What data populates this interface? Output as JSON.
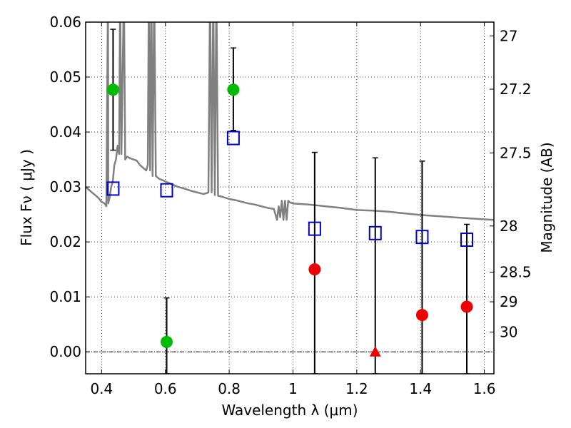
{
  "chart_data": {
    "type": "scatter",
    "title": "",
    "xlabel": "Wavelength  λ (μm)",
    "ylabel_left": "Flux  Fν  ( μJy )",
    "ylabel_right": "Magnitude (AB)",
    "xlim": [
      0.35,
      1.63
    ],
    "ylim": [
      -0.004,
      0.06
    ],
    "grid": true,
    "grid_style": "dotted",
    "x_ticks": [
      0.4,
      0.6,
      0.8,
      1.0,
      1.2,
      1.4,
      1.6
    ],
    "x_tick_labels": [
      "0.4",
      "0.6",
      "0.8",
      "1",
      "1.2",
      "1.4",
      "1.6"
    ],
    "y_ticks": [
      0.0,
      0.01,
      0.02,
      0.03,
      0.04,
      0.05,
      0.06
    ],
    "y_tick_labels": [
      "0.00",
      "0.01",
      "0.02",
      "0.03",
      "0.04",
      "0.05",
      "0.06"
    ],
    "right_axis_ticks": [
      {
        "label": "27",
        "flux": 0.0575
      },
      {
        "label": "27.2",
        "flux": 0.0478
      },
      {
        "label": "27.5",
        "flux": 0.0362
      },
      {
        "label": "28",
        "flux": 0.0229
      },
      {
        "label": "28.5",
        "flux": 0.0145
      },
      {
        "label": "29",
        "flux": 0.0091
      },
      {
        "label": "30",
        "flux": 0.0036
      }
    ],
    "colors": {
      "model": "#808080",
      "detections_optical": "#00bb00",
      "detections_ir": "#ee0000",
      "model_photometry": "#0000cc",
      "errorbar": "#000000"
    },
    "series": [
      {
        "kind": "line",
        "color": "#808080",
        "points": [
          [
            0.35,
            0.03
          ],
          [
            0.36,
            0.0295
          ],
          [
            0.37,
            0.029
          ],
          [
            0.38,
            0.0285
          ],
          [
            0.39,
            0.028
          ],
          [
            0.4,
            0.0273
          ],
          [
            0.41,
            0.027
          ],
          [
            0.415,
            0.0265
          ],
          [
            0.42,
            0.066
          ],
          [
            0.421,
            0.027
          ],
          [
            0.425,
            0.028
          ],
          [
            0.43,
            0.03
          ],
          [
            0.435,
            0.031
          ],
          [
            0.44,
            0.034
          ],
          [
            0.445,
            0.035
          ],
          [
            0.45,
            0.0375
          ],
          [
            0.455,
            0.036
          ],
          [
            0.458,
            0.066
          ],
          [
            0.462,
            0.036
          ],
          [
            0.47,
            0.066
          ],
          [
            0.474,
            0.035
          ],
          [
            0.48,
            0.0355
          ],
          [
            0.49,
            0.0352
          ],
          [
            0.5,
            0.035
          ],
          [
            0.51,
            0.0348
          ],
          [
            0.52,
            0.034
          ],
          [
            0.53,
            0.0335
          ],
          [
            0.54,
            0.033
          ],
          [
            0.545,
            0.034
          ],
          [
            0.548,
            0.066
          ],
          [
            0.552,
            0.033
          ],
          [
            0.556,
            0.066
          ],
          [
            0.56,
            0.032
          ],
          [
            0.565,
            0.066
          ],
          [
            0.57,
            0.032
          ],
          [
            0.58,
            0.0315
          ],
          [
            0.6,
            0.031
          ],
          [
            0.62,
            0.0305
          ],
          [
            0.64,
            0.03
          ],
          [
            0.66,
            0.0297
          ],
          [
            0.68,
            0.0293
          ],
          [
            0.7,
            0.029
          ],
          [
            0.72,
            0.0287
          ],
          [
            0.735,
            0.029
          ],
          [
            0.74,
            0.066
          ],
          [
            0.745,
            0.029
          ],
          [
            0.75,
            0.066
          ],
          [
            0.755,
            0.0285
          ],
          [
            0.76,
            0.066
          ],
          [
            0.765,
            0.0284
          ],
          [
            0.78,
            0.0282
          ],
          [
            0.8,
            0.0278
          ],
          [
            0.82,
            0.0276
          ],
          [
            0.84,
            0.0273
          ],
          [
            0.86,
            0.027
          ],
          [
            0.88,
            0.0268
          ],
          [
            0.9,
            0.0265
          ],
          [
            0.92,
            0.0262
          ],
          [
            0.94,
            0.026
          ],
          [
            0.95,
            0.024
          ],
          [
            0.955,
            0.0265
          ],
          [
            0.96,
            0.0245
          ],
          [
            0.965,
            0.0275
          ],
          [
            0.97,
            0.024
          ],
          [
            0.975,
            0.0275
          ],
          [
            0.98,
            0.024
          ],
          [
            0.985,
            0.0275
          ],
          [
            0.99,
            0.0272
          ],
          [
            1.0,
            0.027
          ],
          [
            1.05,
            0.0268
          ],
          [
            1.1,
            0.0265
          ],
          [
            1.15,
            0.0262
          ],
          [
            1.2,
            0.0258
          ],
          [
            1.25,
            0.0257
          ],
          [
            1.3,
            0.0255
          ],
          [
            1.35,
            0.0252
          ],
          [
            1.4,
            0.0249
          ],
          [
            1.45,
            0.0247
          ],
          [
            1.5,
            0.0245
          ],
          [
            1.55,
            0.0243
          ],
          [
            1.6,
            0.0241
          ],
          [
            1.63,
            0.024
          ]
        ]
      },
      {
        "kind": "errorbar_points",
        "marker": "circle",
        "color": "#00bb00",
        "points": [
          {
            "x": 0.436,
            "y": 0.0477,
            "ylo": 0.0367,
            "yhi": 0.0587
          },
          {
            "x": 0.604,
            "y": 0.0018,
            "ylo": -0.004,
            "yhi": 0.0098
          },
          {
            "x": 0.813,
            "y": 0.0477,
            "ylo": 0.0403,
            "yhi": 0.0553
          }
        ]
      },
      {
        "kind": "errorbar_points",
        "marker": "circle",
        "color": "#ee0000",
        "points": [
          {
            "x": 1.068,
            "y": 0.015,
            "ylo": -0.004,
            "yhi": 0.0363
          },
          {
            "x": 1.405,
            "y": 0.0067,
            "ylo": -0.004,
            "yhi": 0.0347
          },
          {
            "x": 1.545,
            "y": 0.0082,
            "ylo": -0.004,
            "yhi": 0.0232
          }
        ]
      },
      {
        "kind": "errorbar_points",
        "marker": "triangle",
        "color": "#ee0000",
        "points": [
          {
            "x": 1.258,
            "y": 0.0,
            "ylo": -0.004,
            "yhi": 0.0353
          }
        ]
      },
      {
        "kind": "markers",
        "marker": "square-open",
        "color": "#0000cc",
        "points": [
          {
            "x": 0.436,
            "y": 0.0297
          },
          {
            "x": 0.604,
            "y": 0.0294
          },
          {
            "x": 0.813,
            "y": 0.0389
          },
          {
            "x": 1.068,
            "y": 0.0224
          },
          {
            "x": 1.258,
            "y": 0.0216
          },
          {
            "x": 1.405,
            "y": 0.0209
          },
          {
            "x": 1.545,
            "y": 0.0204
          }
        ]
      }
    ]
  }
}
